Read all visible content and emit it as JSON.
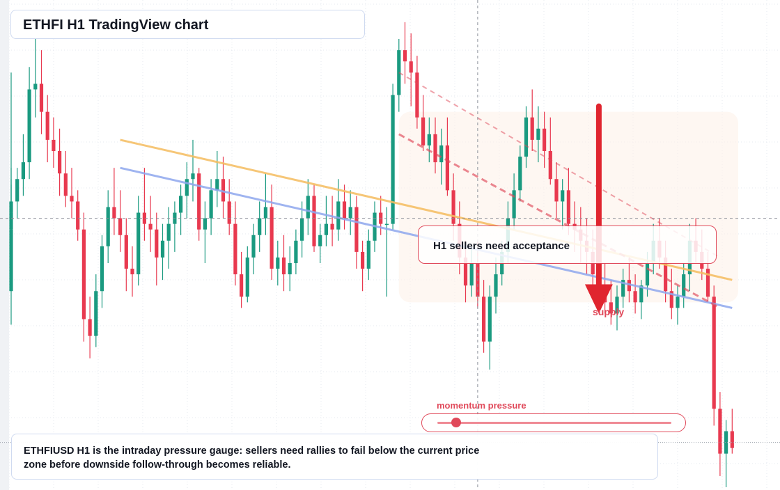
{
  "title": "ETHFI H1 TradingView chart",
  "annotation": "H1 sellers need acceptance",
  "zone_label": "supply",
  "gauge": {
    "label": "momentum pressure",
    "level": 0.08
  },
  "caption": "ETHFIUSD H1 is the intraday pressure gauge: sellers need rallies to fail below the current price zone before downside follow-through becomes reliable.",
  "colors": {
    "up": "#1a9a80",
    "down": "#e8394f",
    "resistance_line": "#f5bd60",
    "trend_line": "#8fa8ee",
    "channel": "#e0495a",
    "arrow": "#e0252f"
  },
  "chart_data": {
    "type": "candlestick",
    "timeframe": "H1",
    "symbol": "ETHFIUSD",
    "grid": true,
    "candles": [
      [
        35,
        74,
        29,
        40,
        0
      ],
      [
        40,
        57,
        38,
        46,
        0
      ],
      [
        46,
        54,
        42,
        49,
        0
      ],
      [
        49,
        55,
        44,
        51,
        0
      ],
      [
        51,
        57,
        48,
        55,
        1
      ],
      [
        55,
        63,
        52,
        58,
        2
      ],
      [
        58,
        75,
        55,
        71,
        3
      ],
      [
        71,
        80,
        66,
        72,
        4
      ],
      [
        72,
        78,
        63,
        67,
        5
      ],
      [
        67,
        70,
        58,
        62,
        6
      ],
      [
        62,
        66,
        57,
        60,
        7
      ],
      [
        60,
        64,
        52,
        56,
        8
      ],
      [
        56,
        60,
        50,
        52,
        9
      ],
      [
        52,
        57,
        48,
        51,
        10
      ],
      [
        51,
        53,
        44,
        46,
        11
      ],
      [
        46,
        49,
        26,
        30,
        12
      ],
      [
        30,
        34,
        23,
        27,
        13
      ],
      [
        27,
        38,
        25,
        35,
        14
      ],
      [
        35,
        45,
        32,
        43,
        15
      ],
      [
        43,
        53,
        40,
        50,
        16
      ],
      [
        50,
        57,
        45,
        48,
        17
      ],
      [
        48,
        53,
        42,
        45,
        18
      ],
      [
        45,
        48,
        35,
        39,
        19
      ],
      [
        39,
        43,
        34,
        38,
        20
      ],
      [
        38,
        52,
        36,
        49,
        21
      ],
      [
        49,
        57,
        44,
        47,
        22
      ],
      [
        47,
        52,
        42,
        46,
        23
      ],
      [
        46,
        49,
        36,
        41,
        24
      ],
      [
        41,
        47,
        37,
        44,
        25
      ],
      [
        44,
        50,
        39,
        47,
        26
      ],
      [
        47,
        51,
        42,
        49,
        27
      ],
      [
        49,
        54,
        45,
        52,
        28
      ],
      [
        52,
        58,
        48,
        55,
        29
      ],
      [
        55,
        62,
        51,
        56,
        30
      ],
      [
        56,
        57,
        44,
        46,
        31
      ],
      [
        46,
        51,
        40,
        48,
        32
      ],
      [
        48,
        55,
        45,
        53,
        33
      ],
      [
        53,
        60,
        50,
        55,
        34
      ],
      [
        55,
        59,
        48,
        51,
        35
      ],
      [
        51,
        55,
        45,
        47,
        36
      ],
      [
        47,
        51,
        36,
        38,
        37
      ],
      [
        38,
        42,
        32,
        34,
        38
      ],
      [
        34,
        43,
        33,
        41,
        39
      ],
      [
        41,
        47,
        38,
        45,
        40
      ],
      [
        45,
        51,
        42,
        48,
        41
      ],
      [
        48,
        56,
        45,
        50,
        42
      ],
      [
        50,
        54,
        37,
        39,
        43
      ],
      [
        39,
        44,
        36,
        41,
        44
      ],
      [
        41,
        45,
        35,
        38,
        45
      ],
      [
        38,
        43,
        35,
        40,
        46
      ],
      [
        40,
        46,
        38,
        44,
        47
      ],
      [
        44,
        51,
        41,
        48,
        48
      ],
      [
        48,
        55,
        45,
        52,
        49
      ],
      [
        52,
        54,
        42,
        43,
        50
      ],
      [
        43,
        47,
        40,
        45,
        51
      ],
      [
        45,
        52,
        43,
        47,
        52
      ],
      [
        47,
        52,
        43,
        46,
        53
      ],
      [
        46,
        55,
        44,
        51,
        54
      ],
      [
        51,
        54,
        46,
        48,
        55
      ],
      [
        48,
        53,
        45,
        50,
        56
      ],
      [
        50,
        52,
        39,
        42,
        57
      ],
      [
        42,
        44,
        35,
        39,
        58
      ],
      [
        39,
        46,
        37,
        44,
        59
      ],
      [
        44,
        51,
        42,
        49,
        60
      ],
      [
        49,
        52,
        45,
        47,
        61
      ],
      [
        47,
        50,
        34,
        47,
        62
      ],
      [
        47,
        72,
        46,
        70,
        63
      ],
      [
        70,
        80,
        67,
        78,
        64
      ],
      [
        78,
        83,
        72,
        76,
        65
      ],
      [
        76,
        81,
        68,
        74,
        66
      ],
      [
        74,
        77,
        64,
        66,
        67
      ],
      [
        66,
        70,
        60,
        61,
        68
      ],
      [
        61,
        66,
        58,
        63,
        69
      ],
      [
        63,
        66,
        56,
        58,
        70
      ],
      [
        58,
        64,
        54,
        61,
        71
      ],
      [
        61,
        66,
        52,
        53,
        72
      ],
      [
        53,
        56,
        44,
        47,
        73
      ],
      [
        47,
        51,
        38,
        41,
        74
      ],
      [
        41,
        44,
        33,
        36,
        75
      ],
      [
        36,
        43,
        34,
        40,
        76
      ],
      [
        40,
        44,
        32,
        34,
        77
      ],
      [
        34,
        37,
        24,
        26,
        78
      ],
      [
        26,
        36,
        21,
        34,
        79
      ],
      [
        34,
        41,
        31,
        38,
        80
      ],
      [
        38,
        44,
        36,
        42,
        81
      ],
      [
        42,
        51,
        40,
        48,
        82
      ],
      [
        48,
        56,
        46,
        53,
        83
      ],
      [
        53,
        61,
        51,
        59,
        84
      ],
      [
        59,
        68,
        57,
        66,
        85
      ],
      [
        66,
        71,
        60,
        62,
        86
      ],
      [
        62,
        68,
        58,
        64,
        87
      ],
      [
        64,
        67,
        57,
        60,
        88
      ],
      [
        60,
        66,
        54,
        55,
        89
      ],
      [
        55,
        58,
        48,
        51,
        90
      ],
      [
        51,
        55,
        46,
        53,
        91
      ],
      [
        53,
        57,
        45,
        47,
        92
      ],
      [
        47,
        51,
        42,
        46,
        93
      ],
      [
        46,
        50,
        40,
        44,
        94
      ],
      [
        44,
        48,
        38,
        42,
        95
      ],
      [
        42,
        46,
        36,
        38,
        96
      ],
      [
        38,
        43,
        33,
        35,
        97
      ],
      [
        35,
        40,
        31,
        33,
        98
      ],
      [
        33,
        37,
        29,
        31,
        99
      ],
      [
        31,
        36,
        28,
        34,
        100
      ],
      [
        34,
        39,
        32,
        37,
        101
      ],
      [
        37,
        41,
        33,
        35,
        102
      ],
      [
        35,
        38,
        31,
        33,
        103
      ],
      [
        33,
        37,
        30,
        36,
        104
      ],
      [
        36,
        42,
        34,
        40,
        105
      ],
      [
        40,
        47,
        38,
        44,
        106
      ],
      [
        44,
        48,
        39,
        41,
        107
      ],
      [
        41,
        44,
        33,
        35,
        108
      ],
      [
        35,
        39,
        30,
        32,
        109
      ],
      [
        32,
        36,
        29,
        34,
        110
      ],
      [
        34,
        40,
        32,
        38,
        111
      ],
      [
        38,
        47,
        35,
        44,
        112
      ],
      [
        44,
        48,
        40,
        42,
        113
      ],
      [
        42,
        46,
        37,
        39,
        114
      ],
      [
        39,
        42,
        33,
        34,
        115
      ],
      [
        34,
        36,
        11,
        14,
        116
      ],
      [
        14,
        17,
        2,
        6,
        117
      ],
      [
        6,
        12,
        0,
        10,
        118
      ],
      [
        10,
        14,
        6,
        7,
        119
      ]
    ],
    "resistance_line": {
      "from": [
        18,
        62
      ],
      "to": [
        119,
        37
      ]
    },
    "trend_line": {
      "from": [
        18,
        57
      ],
      "to": [
        119,
        32
      ]
    },
    "channel_upper": {
      "from": [
        64,
        74
      ],
      "to": [
        117,
        41
      ]
    },
    "channel_lower": {
      "from": [
        64,
        63
      ],
      "to": [
        117,
        32
      ]
    },
    "arrow": {
      "from": [
        97,
        68
      ],
      "to": [
        97,
        31
      ]
    },
    "zone": {
      "from": 64,
      "to": 120,
      "low": 33,
      "high": 67
    },
    "crosshair": {
      "x": 77,
      "y": 48
    },
    "current_price": 8
  }
}
